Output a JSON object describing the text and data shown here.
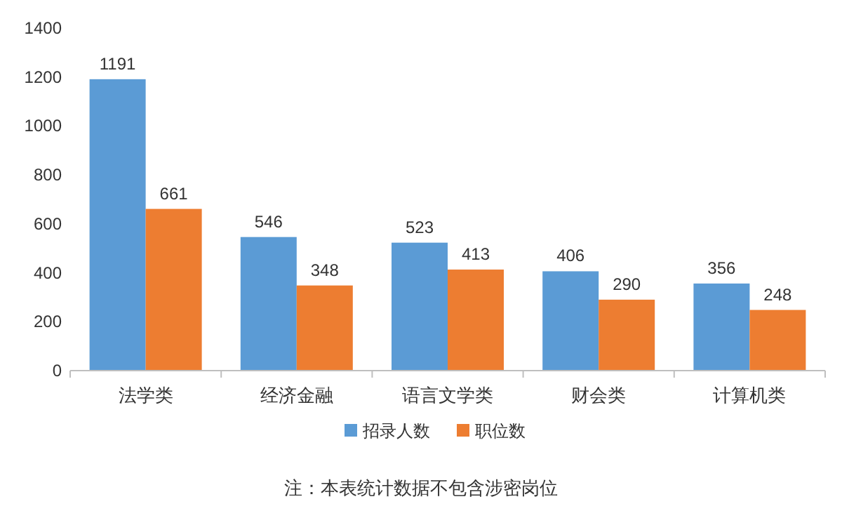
{
  "chart_data": {
    "type": "bar",
    "categories": [
      "法学类",
      "经济金融",
      "语言文学类",
      "财会类",
      "计算机类"
    ],
    "series": [
      {
        "name": "招录人数",
        "color": "#5b9bd5",
        "values": [
          1191,
          546,
          523,
          406,
          356
        ]
      },
      {
        "name": "职位数",
        "color": "#ed7d31",
        "values": [
          661,
          348,
          413,
          290,
          248
        ]
      }
    ],
    "ylim": [
      0,
      1400
    ],
    "yticks": [
      0,
      200,
      400,
      600,
      800,
      1000,
      1200,
      1400
    ],
    "data_labels": true,
    "legend": "bottom",
    "annotations": [
      "注：本表统计数据不包含涉密岗位"
    ]
  }
}
